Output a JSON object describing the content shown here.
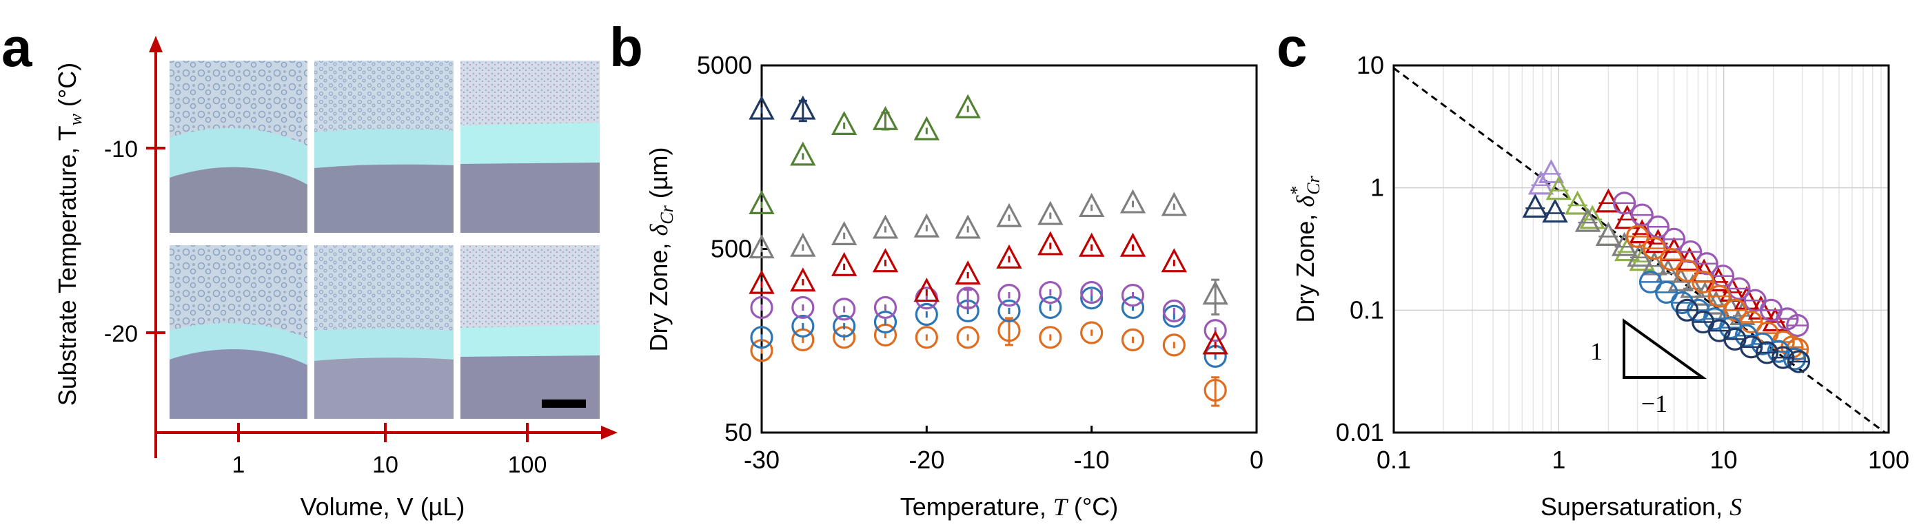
{
  "colors": {
    "axis_red": "#c00000",
    "navy": "#203864",
    "blue": "#2e75b6",
    "orange": "#e06c1f",
    "purple": "#9b59b6",
    "red": "#c00000",
    "green": "#548235",
    "gray": "#7f7f7f",
    "lavender": "#a78bd6",
    "lightgreen": "#8fb04a"
  },
  "panels": {
    "a": {
      "letter": "a",
      "ylabel": "Substrate Temperature, T",
      "ylabel_sub": "w",
      "ylabel_unit": " (°C)",
      "y_ticks": [
        "-10",
        "-20"
      ],
      "xlabel": "Volume, V",
      "xlabel_unit": " (µL)",
      "x_ticks": [
        "1",
        "10",
        "100"
      ]
    },
    "b": {
      "letter": "b"
    },
    "c": {
      "letter": "c",
      "slope_run": "1",
      "slope_rise": "−1"
    }
  },
  "chart_data": [
    {
      "panel": "b",
      "type": "scatter",
      "xlabel": "Temperature, T (°C)",
      "xlabel_main": "Temperature, ",
      "xlabel_var": "T",
      "xlabel_unit": " (°C)",
      "ylabel": "Dry Zone, δCr (µm)",
      "ylabel_main": "Dry Zone, ",
      "ylabel_sym": "δ",
      "ylabel_sub": "Cr",
      "ylabel_unit": " (µm)",
      "xlim": [
        -30,
        0
      ],
      "ylim": [
        50,
        5000
      ],
      "y_scale": "log",
      "x_ticks": [
        "-30",
        "-20",
        "-10",
        "0"
      ],
      "x_tick_values": [
        -30,
        -20,
        -10,
        0
      ],
      "y_ticks": [
        "50",
        "500",
        "5000"
      ],
      "y_tick_values": [
        50,
        500,
        5000
      ],
      "series": [
        {
          "marker": "circle",
          "color": "orange",
          "x": [
            -30,
            -27.5,
            -25,
            -22.5,
            -20,
            -17.5,
            -15,
            -12.5,
            -10,
            -7.5,
            -5,
            -2.5
          ],
          "y": [
            140,
            160,
            165,
            170,
            165,
            165,
            180,
            165,
            175,
            160,
            150,
            85
          ],
          "err": [
            0,
            0,
            0,
            0,
            0,
            0,
            30,
            0,
            0,
            0,
            0,
            15
          ]
        },
        {
          "marker": "circle",
          "color": "blue",
          "x": [
            -30,
            -27.5,
            -25,
            -22.5,
            -20,
            -17.5,
            -15,
            -12.5,
            -10,
            -7.5,
            -5,
            -2.5
          ],
          "y": [
            165,
            190,
            190,
            200,
            220,
            230,
            230,
            240,
            270,
            240,
            215,
            130
          ],
          "err": [
            0,
            0,
            0,
            0,
            0,
            0,
            0,
            0,
            0,
            0,
            0,
            0
          ]
        },
        {
          "marker": "circle",
          "color": "purple",
          "x": [
            -30,
            -27.5,
            -25,
            -22.5,
            -20,
            -17.5,
            -15,
            -12.5,
            -10,
            -7.5,
            -5,
            -2.5
          ],
          "y": [
            240,
            240,
            235,
            240,
            270,
            270,
            280,
            290,
            290,
            280,
            230,
            180
          ],
          "err": [
            0,
            0,
            0,
            0,
            0,
            30,
            0,
            0,
            0,
            0,
            0,
            0
          ]
        },
        {
          "marker": "triangle",
          "color": "red",
          "x": [
            -30,
            -27.5,
            -25,
            -22.5,
            -20,
            -17.5,
            -15,
            -12.5,
            -10,
            -7.5,
            -5,
            -2.5
          ],
          "y": [
            320,
            330,
            400,
            420,
            290,
            360,
            440,
            520,
            510,
            510,
            420,
            150
          ],
          "err": [
            0,
            0,
            0,
            0,
            0,
            0,
            0,
            0,
            0,
            0,
            0,
            0
          ]
        },
        {
          "marker": "triangle",
          "color": "gray",
          "x": [
            -30,
            -27.5,
            -25,
            -22.5,
            -20,
            -17.5,
            -15,
            -12.5,
            -10,
            -7.5,
            -5,
            -2.5
          ],
          "y": [
            500,
            510,
            590,
            640,
            650,
            640,
            740,
            760,
            840,
            880,
            850,
            280
          ],
          "err": [
            0,
            0,
            0,
            0,
            0,
            0,
            0,
            0,
            0,
            0,
            0,
            60
          ]
        },
        {
          "marker": "triangle",
          "color": "green",
          "x": [
            -30,
            -27.5,
            -25,
            -22.5,
            -20,
            -17.5
          ],
          "y": [
            870,
            1600,
            2350,
            2500,
            2200,
            2900
          ],
          "err": [
            0,
            0,
            0,
            260,
            0,
            0
          ]
        },
        {
          "marker": "triangle",
          "color": "navy",
          "x": [
            -30,
            -27.5
          ],
          "y": [
            2850,
            2850
          ],
          "err": [
            0,
            360
          ]
        }
      ]
    },
    {
      "panel": "c",
      "type": "scatter",
      "xlabel": "Supersaturation, S",
      "xlabel_main": "Supersaturation, ",
      "xlabel_var": "S",
      "ylabel": "Dry Zone, δ*Cr",
      "ylabel_main": "Dry Zone, ",
      "ylabel_sym": "δ",
      "ylabel_sup": "*",
      "ylabel_sub": "Cr",
      "x_scale": "log",
      "y_scale": "log",
      "xlim": [
        0.1,
        100
      ],
      "ylim": [
        0.01,
        10
      ],
      "grid": true,
      "x_ticks": [
        "0.1",
        "1",
        "10",
        "100"
      ],
      "x_tick_values": [
        0.1,
        1,
        10,
        100
      ],
      "y_ticks": [
        "0.01",
        "0.1",
        "1",
        "10"
      ],
      "y_tick_values": [
        0.01,
        0.1,
        1,
        10
      ],
      "fit_line": {
        "x": [
          0.1,
          100
        ],
        "y": [
          9.5,
          0.0095
        ]
      },
      "series": [
        {
          "marker": "triangle",
          "color": "navy",
          "x": [
            0.72,
            0.95
          ],
          "y": [
            0.68,
            0.62
          ]
        },
        {
          "marker": "triangle",
          "color": "lavender",
          "x": [
            0.78,
            0.9
          ],
          "y": [
            1.05,
            1.3
          ]
        },
        {
          "marker": "triangle",
          "color": "lightgreen",
          "x": [
            1.0,
            1.3,
            1.6,
            2.0,
            2.6,
            3.2
          ],
          "y": [
            0.95,
            0.72,
            0.55,
            0.4,
            0.3,
            0.25
          ]
        },
        {
          "marker": "triangle",
          "color": "gray",
          "x": [
            1.5,
            2.0,
            2.5,
            3.1,
            3.8,
            4.6,
            5.5,
            6.5,
            7.7,
            9.0,
            11,
            13
          ],
          "y": [
            0.52,
            0.4,
            0.33,
            0.27,
            0.23,
            0.2,
            0.17,
            0.15,
            0.13,
            0.11,
            0.1,
            0.09
          ]
        },
        {
          "marker": "triangle",
          "color": "red",
          "x": [
            2.0,
            2.6,
            3.2,
            4.0,
            5.0,
            6.2,
            7.6,
            9.3,
            11.3,
            13.8,
            16.8,
            20.5
          ],
          "y": [
            0.75,
            0.55,
            0.42,
            0.35,
            0.3,
            0.25,
            0.2,
            0.17,
            0.14,
            0.12,
            0.1,
            0.08
          ]
        },
        {
          "marker": "circle",
          "color": "purple",
          "x": [
            2.5,
            3.2,
            4.0,
            5.0,
            6.3,
            7.9,
            9.9,
            12.4,
            15.5,
            19.4,
            24.3,
            28
          ],
          "y": [
            0.75,
            0.6,
            0.48,
            0.38,
            0.3,
            0.24,
            0.19,
            0.15,
            0.12,
            0.1,
            0.085,
            0.075
          ]
        },
        {
          "marker": "circle",
          "color": "orange",
          "x": [
            3.0,
            3.8,
            4.8,
            6.0,
            7.5,
            9.4,
            11.8,
            14.7,
            18.4,
            23,
            26,
            28
          ],
          "y": [
            0.4,
            0.32,
            0.26,
            0.21,
            0.17,
            0.13,
            0.1,
            0.08,
            0.065,
            0.055,
            0.05,
            0.048
          ]
        },
        {
          "marker": "circle",
          "color": "blue",
          "x": [
            3.6,
            4.5,
            5.6,
            7.0,
            8.8,
            11,
            13.7,
            17.2,
            21.5,
            26.9
          ],
          "y": [
            0.17,
            0.14,
            0.115,
            0.1,
            0.085,
            0.072,
            0.062,
            0.053,
            0.046,
            0.04
          ]
        },
        {
          "marker": "circle",
          "color": "navy",
          "x": [
            6.0,
            7.5,
            9.4,
            11.7,
            14.7,
            18.3,
            22.9,
            28.5
          ],
          "y": [
            0.1,
            0.08,
            0.068,
            0.058,
            0.05,
            0.045,
            0.041,
            0.038
          ]
        }
      ]
    }
  ]
}
